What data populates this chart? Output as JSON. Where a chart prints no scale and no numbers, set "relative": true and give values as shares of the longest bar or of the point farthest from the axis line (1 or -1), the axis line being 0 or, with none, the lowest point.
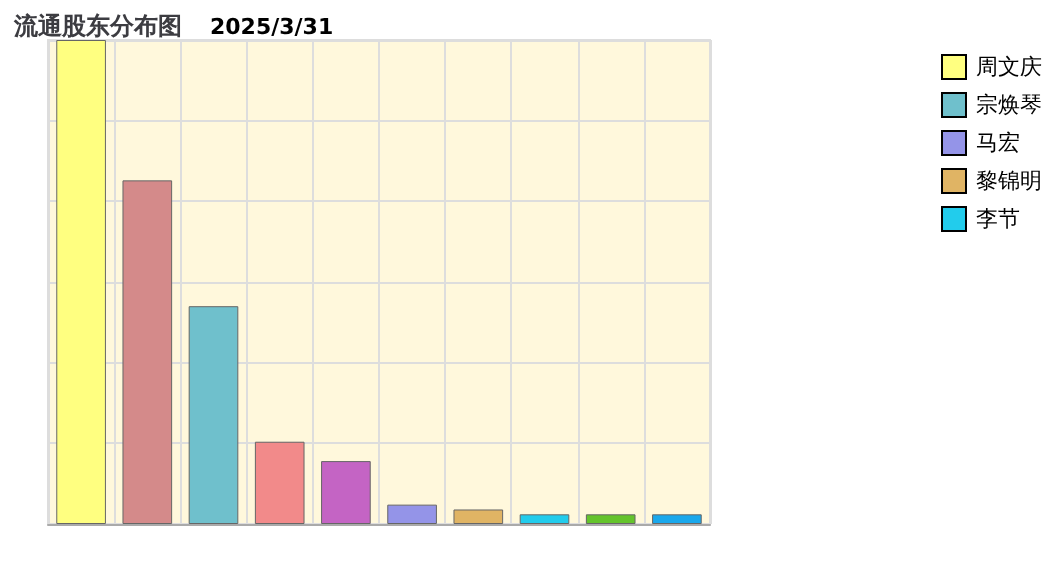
{
  "chart_data": {
    "type": "bar",
    "title": "流通股东分布图",
    "subtitle": "2025/3/31",
    "relative": true,
    "grid": true,
    "legend": "right",
    "stacked": true,
    "categories": [
      null,
      null,
      null,
      null,
      null,
      null,
      null,
      null,
      null,
      null
    ],
    "series": [
      {
        "name": "周文庆",
        "color": "#ffff80",
        "values": [
          1,
          null,
          null,
          null,
          null,
          null,
          null,
          null,
          null,
          null
        ]
      },
      {
        "color": "#d48a8a",
        "values": [
          null,
          0.71,
          null,
          null,
          null,
          null,
          null,
          null,
          null,
          null
        ]
      },
      {
        "name": "宗焕琴",
        "color": "#6fc0cc",
        "values": [
          null,
          null,
          0.45,
          null,
          null,
          null,
          null,
          null,
          null,
          null
        ]
      },
      {
        "color": "#f28a8a",
        "values": [
          null,
          null,
          null,
          0.17,
          null,
          null,
          null,
          null,
          null,
          null
        ]
      },
      {
        "color": "#c464c4",
        "values": [
          null,
          null,
          null,
          null,
          0.13,
          null,
          null,
          null,
          null,
          null
        ]
      },
      {
        "name": "马宏",
        "color": "#9494e8",
        "values": [
          null,
          null,
          null,
          null,
          null,
          0.04,
          null,
          null,
          null,
          null
        ]
      },
      {
        "name": "黎锦明",
        "color": "#e0b464",
        "values": [
          null,
          null,
          null,
          null,
          null,
          null,
          0.03,
          null,
          null,
          null
        ]
      },
      {
        "name": "李节",
        "color": "#22ccec",
        "values": [
          null,
          null,
          null,
          null,
          null,
          null,
          null,
          0.02,
          null,
          null
        ]
      },
      {
        "color": "#64c42c",
        "values": [
          null,
          null,
          null,
          null,
          null,
          null,
          null,
          null,
          0.02,
          null
        ]
      },
      {
        "color": "#1aa8ec",
        "values": [
          null,
          null,
          null,
          null,
          null,
          null,
          null,
          null,
          null,
          0.02
        ]
      }
    ]
  }
}
